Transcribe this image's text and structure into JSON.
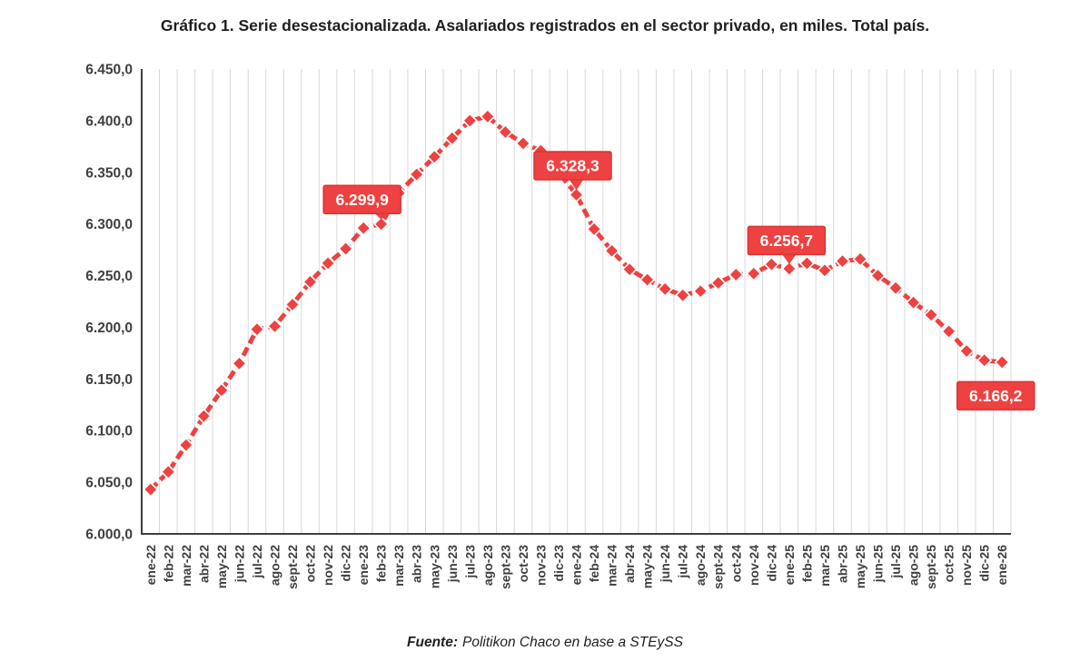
{
  "header": {
    "title": "Gráfico 1. Serie desestacionalizada. Asalariados registrados en el sector privado, en miles. Total país."
  },
  "footer": {
    "source_label": "Fuente:",
    "source_text": "Politikon Chaco en base a STEySS"
  },
  "chart_data": {
    "type": "line",
    "title": "Gráfico 1. Serie desestacionalizada. Asalariados registrados en el sector privado, en miles. Total país.",
    "xlabel": "",
    "ylabel": "",
    "legend": "none",
    "grid": "vertical-only",
    "ylim": [
      6000,
      6450
    ],
    "yticks": [
      {
        "value": 6000,
        "label": "6.000,0"
      },
      {
        "value": 6050,
        "label": "6.050,0"
      },
      {
        "value": 6100,
        "label": "6.100,0"
      },
      {
        "value": 6150,
        "label": "6.150,0"
      },
      {
        "value": 6200,
        "label": "6.200,0"
      },
      {
        "value": 6250,
        "label": "6.250,0"
      },
      {
        "value": 6300,
        "label": "6.300,0"
      },
      {
        "value": 6350,
        "label": "6.350,0"
      },
      {
        "value": 6400,
        "label": "6.400,0"
      },
      {
        "value": 6450,
        "label": "6.450,0"
      }
    ],
    "categories": [
      "ene-22",
      "feb-22",
      "mar-22",
      "abr-22",
      "may-22",
      "jun-22",
      "jul-22",
      "ago-22",
      "sept-22",
      "oct-22",
      "nov-22",
      "dic-22",
      "ene-23",
      "feb-23",
      "mar-23",
      "abr-23",
      "may-23",
      "jun-23",
      "jul-23",
      "ago-23",
      "sept-23",
      "oct-23",
      "nov-23",
      "dic-23",
      "ene-24",
      "feb-24",
      "mar-24",
      "abr-24",
      "may-24",
      "jun-24",
      "jul-24",
      "ago-24",
      "sept-24",
      "oct-24",
      "nov-24",
      "dic-24",
      "ene-25",
      "feb-25",
      "mar-25",
      "abr-25",
      "may-25",
      "jun-25",
      "jul-25",
      "ago-25",
      "sept-25",
      "oct-25",
      "nov-25",
      "dic-25",
      "ene-26"
    ],
    "values": [
      6043,
      6060,
      6086,
      6114,
      6139,
      6165,
      6198,
      6201,
      6222,
      6244,
      6262,
      6276,
      6296,
      6299.9,
      6330,
      6348,
      6365,
      6383,
      6400,
      6404,
      6389,
      6378,
      6371,
      6350,
      6328.3,
      6295,
      6274,
      6256,
      6246,
      6237,
      6231,
      6235,
      6243,
      6251,
      6252,
      6261,
      6256.7,
      6262,
      6255,
      6264,
      6266,
      6250,
      6238,
      6224,
      6212,
      6196,
      6177,
      6168,
      6166.2
    ],
    "annotations": [
      {
        "category": "feb-23",
        "index": 13,
        "label": "6.299,9",
        "placement": "above"
      },
      {
        "category": "ene-24",
        "index": 24,
        "label": "6.328,3",
        "placement": "above"
      },
      {
        "category": "ene-25",
        "index": 36,
        "label": "6.256,7",
        "placement": "above"
      },
      {
        "category": "ene-26",
        "index": 48,
        "label": "6.166,2",
        "placement": "below"
      }
    ],
    "style": {
      "line_color": "#EE4141",
      "line_style": "dashed",
      "marker": "diamond",
      "marker_outline": "#FFFFFF",
      "label_box_fill": "#EE4141",
      "label_box_border": "#DB3434",
      "label_text_color": "#FFFFFF",
      "gridline_color": "#D9D9D9",
      "axis_color": "#3F3F3F",
      "tick_label_color": "#3F3F3F"
    }
  }
}
